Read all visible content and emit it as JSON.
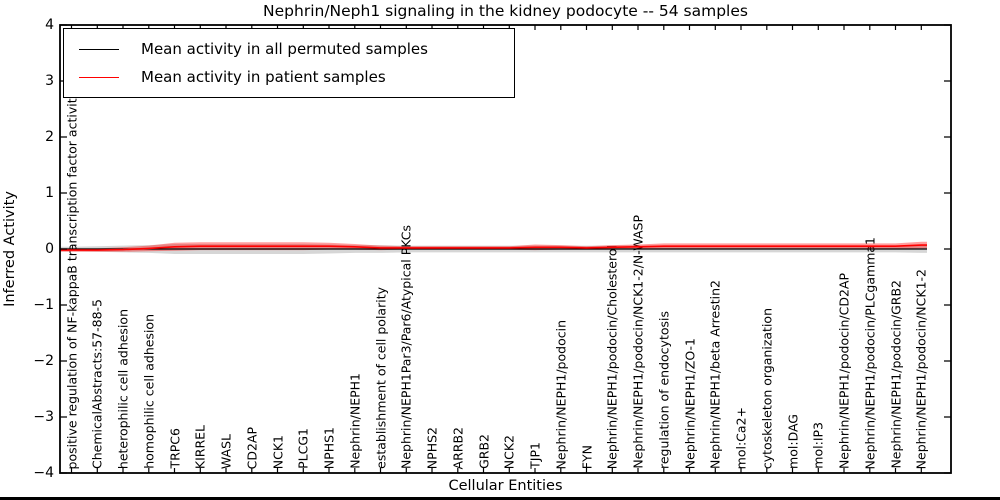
{
  "chart_data": {
    "type": "line",
    "title": "Nephrin/Neph1 signaling in the kidney podocyte -- 54 samples",
    "xlabel": "Cellular Entities",
    "ylabel": "Inferred Activity",
    "ylim": [
      -4,
      4
    ],
    "grid": false,
    "legend_position": "upper left",
    "zero_line": {
      "style": "dotted",
      "color": "#000000",
      "value": 0
    },
    "yticks": [
      {
        "label": "4",
        "value": 4
      },
      {
        "label": "3",
        "value": 3
      },
      {
        "label": "2",
        "value": 2
      },
      {
        "label": "1",
        "value": 1
      },
      {
        "label": "0",
        "value": 0
      },
      {
        "label": "−1",
        "value": -1
      },
      {
        "label": "−2",
        "value": -2
      },
      {
        "label": "−3",
        "value": -3
      },
      {
        "label": "−4",
        "value": -4
      }
    ],
    "categories": [
      "positive regulation of NF-kappaB transcription factor activity",
      "ChemicalAbstracts:57-88-5",
      "heterophilic cell adhesion",
      "homophilic cell adhesion",
      "TRPC6",
      "KIRREL",
      "WASL",
      "CD2AP",
      "NCK1",
      "PLCG1",
      "NPHS1",
      "Nephrin/NEPH1",
      "establishment of cell polarity",
      "Nephrin/NEPH1Par3/Par6/Atypical PKCs",
      "NPHS2",
      "ARRB2",
      "GRB2",
      "NCK2",
      "TJP1",
      "Nephrin/NEPH1/podocin",
      "FYN",
      "Nephrin/NEPH1/podocin/Cholesterol",
      "Nephrin/NEPH1/podocin/NCK1-2/N-WASP",
      "regulation of endocytosis",
      "Nephrin/NEPH1/ZO-1",
      "Nephrin/NEPH1/beta Arrestin2",
      "mol:Ca2+",
      "cytoskeleton organization",
      "mol:DAG",
      "mol:IP3",
      "Nephrin/NEPH1/podocin/CD2AP",
      "Nephrin/NEPH1/podocin/PLCgamma1",
      "Nephrin/NEPH1/podocin/GRB2",
      "Nephrin/NEPH1/podocin/NCK1-2"
    ],
    "series": [
      {
        "name": "Mean activity in all permuted samples",
        "color": "#000000",
        "band_color": "rgba(0,0,0,0.16)",
        "values": [
          0,
          0,
          0,
          0,
          0,
          0,
          0,
          0,
          0,
          0,
          0,
          0,
          0,
          0,
          0,
          0,
          0,
          0,
          0,
          0,
          0,
          0,
          0,
          0,
          0,
          0,
          0,
          0,
          0,
          0,
          0,
          0,
          0,
          0
        ],
        "band_half_width": [
          0.04,
          0.05,
          0.06,
          0.07,
          0.09,
          0.09,
          0.09,
          0.09,
          0.09,
          0.09,
          0.08,
          0.07,
          0.07,
          0.06,
          0.06,
          0.06,
          0.06,
          0.06,
          0.06,
          0.06,
          0.06,
          0.06,
          0.06,
          0.06,
          0.06,
          0.06,
          0.06,
          0.06,
          0.06,
          0.06,
          0.06,
          0.06,
          0.06,
          0.07
        ]
      },
      {
        "name": "Mean activity in patient samples",
        "color": "#ff0000",
        "band_color": "rgba(255,0,0,0.38)",
        "values": [
          -0.02,
          -0.02,
          -0.01,
          0.01,
          0.04,
          0.05,
          0.05,
          0.05,
          0.05,
          0.05,
          0.05,
          0.04,
          0.02,
          0.02,
          0.02,
          0.02,
          0.02,
          0.02,
          0.03,
          0.03,
          0.02,
          0.03,
          0.04,
          0.05,
          0.05,
          0.05,
          0.05,
          0.05,
          0.05,
          0.05,
          0.05,
          0.05,
          0.05,
          0.07
        ],
        "band_half_width": [
          0.03,
          0.03,
          0.04,
          0.05,
          0.07,
          0.07,
          0.07,
          0.07,
          0.07,
          0.07,
          0.06,
          0.05,
          0.04,
          0.03,
          0.03,
          0.03,
          0.03,
          0.03,
          0.05,
          0.04,
          0.03,
          0.04,
          0.04,
          0.05,
          0.05,
          0.05,
          0.05,
          0.05,
          0.05,
          0.05,
          0.05,
          0.05,
          0.05,
          0.06
        ]
      }
    ]
  },
  "legend": {
    "items": [
      {
        "label": "Mean activity in all permuted samples",
        "color": "#000000"
      },
      {
        "label": "Mean activity in patient samples",
        "color": "#ff0000"
      }
    ]
  }
}
